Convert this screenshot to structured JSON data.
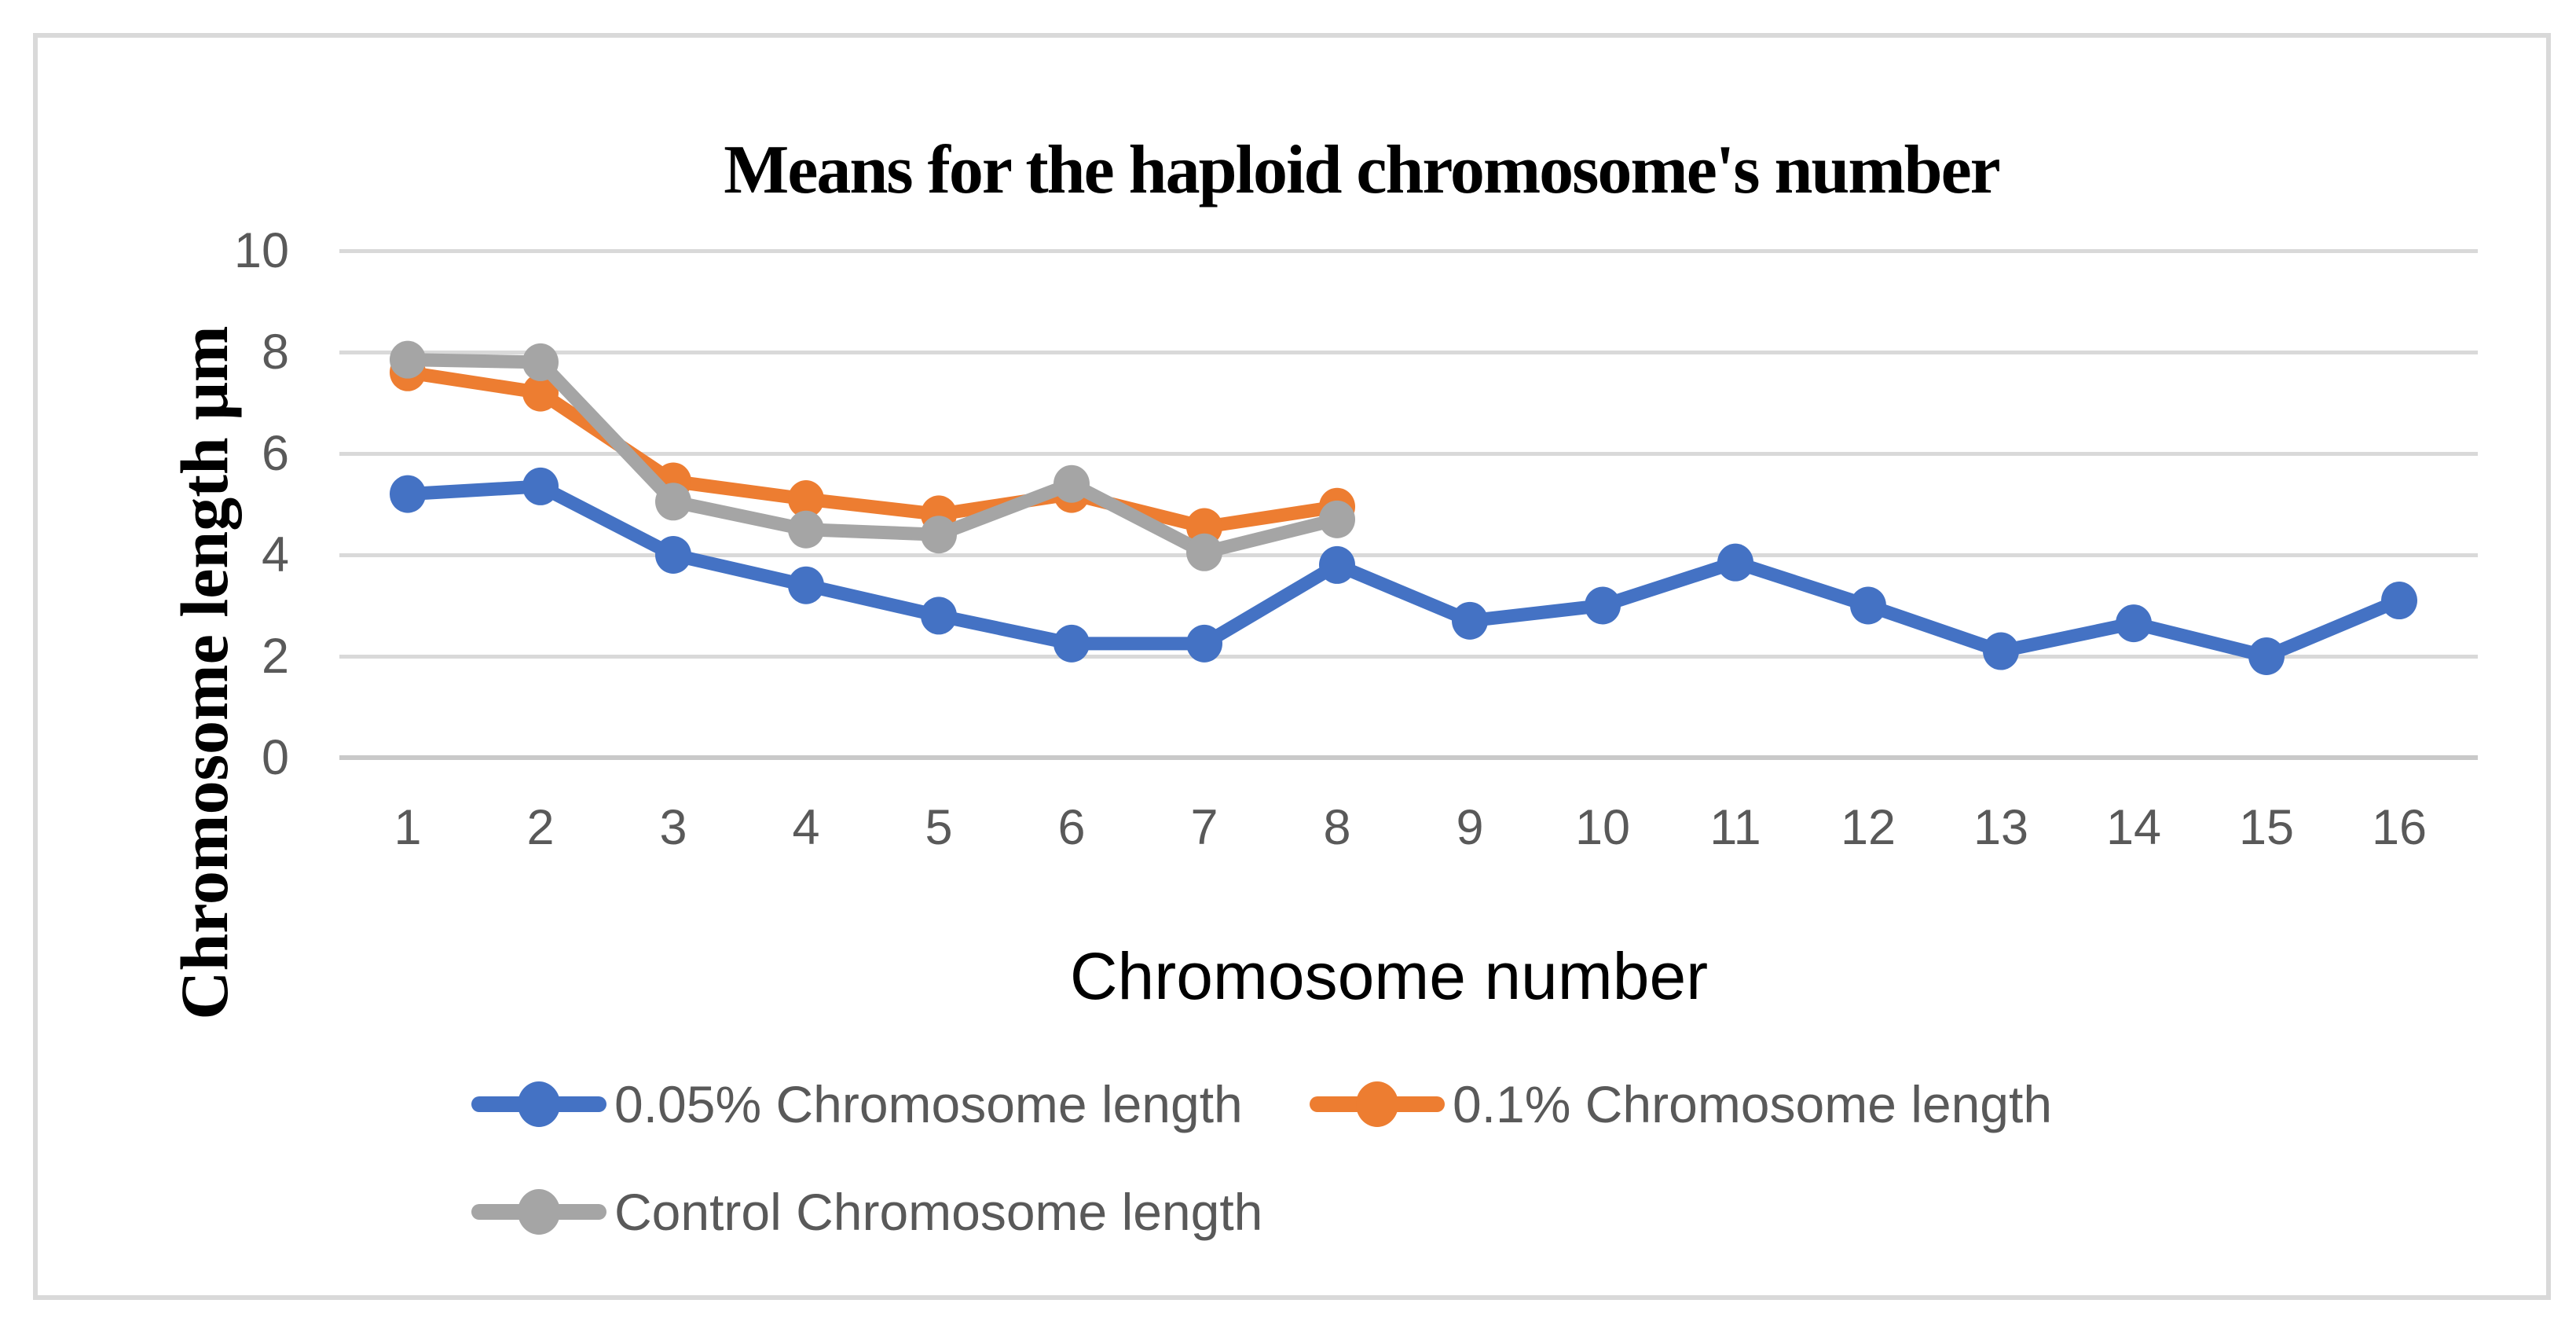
{
  "chart_data": {
    "type": "line",
    "title": "Means for the haploid chromosome's number",
    "xlabel": "Chromosome number",
    "ylabel": "Chromosome length μm",
    "categories": [
      "1",
      "2",
      "3",
      "4",
      "5",
      "6",
      "7",
      "8",
      "9",
      "10",
      "11",
      "12",
      "13",
      "14",
      "15",
      "16"
    ],
    "y_ticks": [
      0,
      2,
      4,
      6,
      8,
      10
    ],
    "ylim": [
      0,
      10
    ],
    "grid": true,
    "legend_position": "bottom",
    "series": [
      {
        "name": "0.05% Chromosome length",
        "color": "#4472C4",
        "values": [
          5.2,
          5.35,
          4.0,
          3.4,
          2.8,
          2.25,
          2.25,
          3.8,
          2.7,
          3.0,
          3.85,
          3.0,
          2.1,
          2.65,
          2.0,
          3.1
        ]
      },
      {
        "name": "0.1% Chromosome length",
        "color": "#ED7D31",
        "values": [
          7.6,
          7.2,
          5.45,
          5.1,
          4.8,
          5.2,
          4.55,
          4.95
        ]
      },
      {
        "name": "Control Chromosome length",
        "color": "#A5A5A5",
        "values": [
          7.85,
          7.8,
          5.05,
          4.5,
          4.4,
          5.4,
          4.05,
          4.7
        ]
      }
    ]
  },
  "colors": {
    "gridline": "#D9D9D9",
    "zero_line": "#C9C9C9",
    "tick_label": "#595959",
    "legend_label": "#595959",
    "frame_border": "#D9D9D9",
    "background": "#FFFFFF",
    "title": "#000000"
  }
}
